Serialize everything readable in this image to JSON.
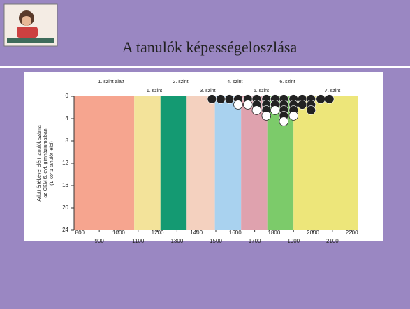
{
  "chart_data": {
    "type": "bands_dots",
    "title": "A tanulók képességeloszlása",
    "ylabel": [
      "Adott értékével elért tanulók száma",
      "az OKM 6. évf. gimnáziumaiban",
      "(1 kör 1 tanulót jelöl)"
    ],
    "xlim": [
      770,
      2230
    ],
    "ylim": [
      0,
      24
    ],
    "xticks": [
      800,
      900,
      1000,
      1100,
      1200,
      1300,
      1400,
      1500,
      1600,
      1700,
      1800,
      1900,
      2000,
      2100,
      2200
    ],
    "yticks": [
      0,
      4,
      8,
      12,
      16,
      20,
      24
    ],
    "bands": [
      {
        "label": "1. szint alatt",
        "start": 770,
        "end": 1080,
        "color": "#f6a58f"
      },
      {
        "label": "1. szint",
        "start": 1080,
        "end": 1215,
        "color": "#f3e39a"
      },
      {
        "label": "2. szint",
        "start": 1215,
        "end": 1350,
        "color": "#149a72"
      },
      {
        "label": "3. szint",
        "start": 1350,
        "end": 1495,
        "color": "#f4d1bf"
      },
      {
        "label": "4. szint",
        "start": 1495,
        "end": 1630,
        "color": "#a9d2ef"
      },
      {
        "label": "5. szint",
        "start": 1630,
        "end": 1765,
        "color": "#dfa2ae"
      },
      {
        "label": "6. szint",
        "start": 1765,
        "end": 1900,
        "color": "#7ccb6a"
      },
      {
        "label": "7. szint",
        "start": 1900,
        "end": 2230,
        "color": "#ede67a"
      }
    ],
    "columns": [
      {
        "x": 1480,
        "filled": 1,
        "open": 0
      },
      {
        "x": 1525,
        "filled": 1,
        "open": 0
      },
      {
        "x": 1570,
        "filled": 1,
        "open": 0
      },
      {
        "x": 1615,
        "filled": 1,
        "open": 1
      },
      {
        "x": 1665,
        "filled": 1,
        "open": 1
      },
      {
        "x": 1710,
        "filled": 2,
        "open": 1
      },
      {
        "x": 1760,
        "filled": 3,
        "open": 1
      },
      {
        "x": 1805,
        "filled": 2,
        "open": 1
      },
      {
        "x": 1850,
        "filled": 4,
        "open": 1
      },
      {
        "x": 1900,
        "filled": 3,
        "open": 1
      },
      {
        "x": 1945,
        "filled": 2,
        "open": 0
      },
      {
        "x": 1990,
        "filled": 3,
        "open": 0
      },
      {
        "x": 2040,
        "filled": 1,
        "open": 0
      },
      {
        "x": 2085,
        "filled": 1,
        "open": 0
      }
    ]
  }
}
